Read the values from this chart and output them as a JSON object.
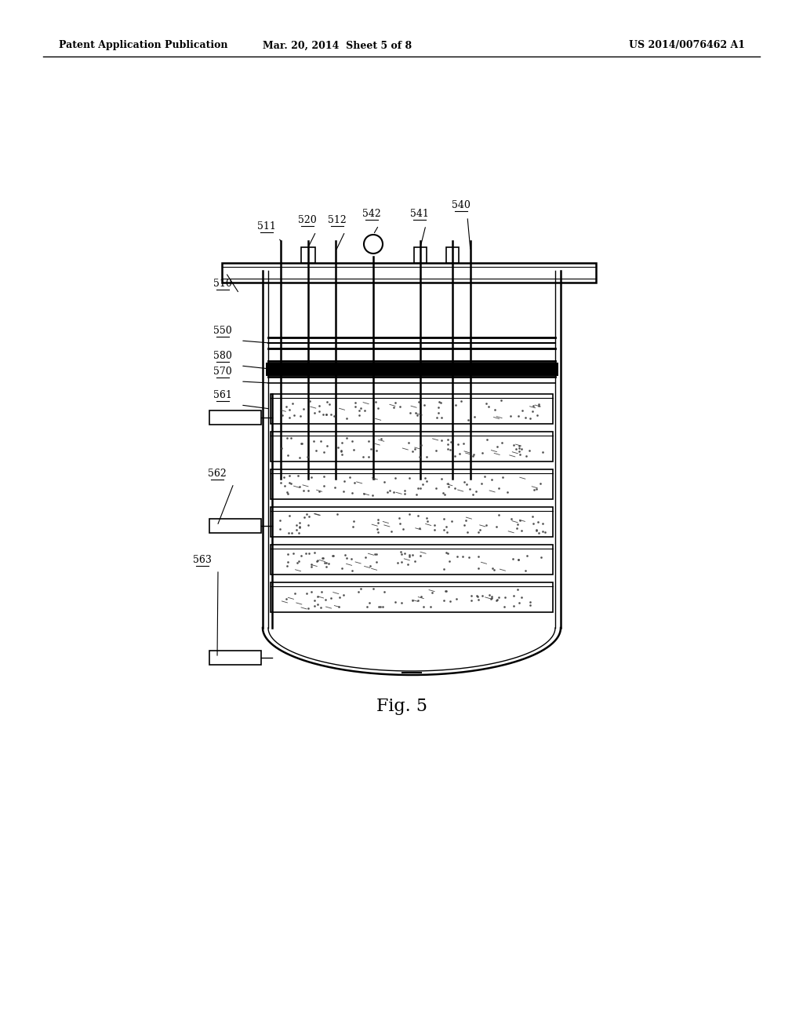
{
  "title": "Fig. 5",
  "header_left": "Patent Application Publication",
  "header_mid": "Mar. 20, 2014  Sheet 5 of 8",
  "header_right": "US 2014/0076462 A1",
  "bg_color": "#ffffff",
  "line_color": "#000000",
  "fig_label_fontsize": 16,
  "label_fontsize": 9,
  "header_fontsize": 9
}
